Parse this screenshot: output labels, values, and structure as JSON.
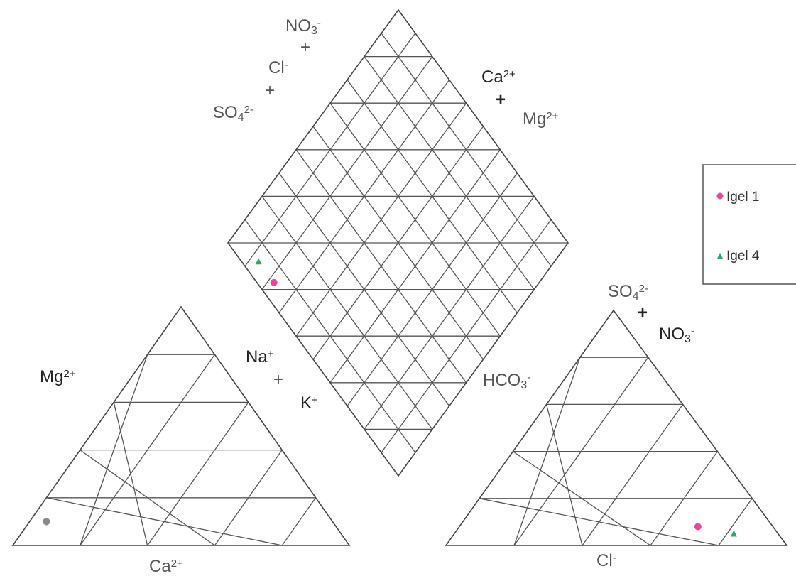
{
  "chart_data": {
    "type": "scatter",
    "subtype": "piper-diagram",
    "colors": {
      "igel1": "#e8479a",
      "igel4": "#2ea86a",
      "overlap": "#8a8a8a",
      "grid": "#555555"
    },
    "labels": {
      "diamond_top": [
        "NO3-",
        "+",
        "Cl-",
        "+",
        "SO42-"
      ],
      "diamond_right_upper": [
        "Ca2+",
        "+",
        "Mg2+"
      ],
      "diamond_left_lower": [
        "Na+",
        "+",
        "K+"
      ],
      "diamond_right_lower": "HCO3-",
      "cation_left": "Mg2+",
      "cation_bottom": "Ca2+",
      "anion_top": [
        "SO42-",
        "+",
        "NO3-"
      ],
      "anion_bottom": "Cl-"
    },
    "legend": {
      "position": "right",
      "entries": [
        {
          "name": "Igel 1",
          "marker": "circle",
          "color": "#e8479a"
        },
        {
          "name": "Igel 4",
          "marker": "triangle",
          "color": "#2ea86a"
        }
      ]
    },
    "series": [
      {
        "name": "Igel 1",
        "cation": {
          "Ca": 85,
          "Mg": 10,
          "NaK": 5
        },
        "anion": {
          "Cl": 70,
          "SO4NO3": 8,
          "HCO3": 22
        },
        "diamond": {
          "NaK": 5,
          "SO4ClNO3": 78
        }
      },
      {
        "name": "Igel 4",
        "cation": {
          "Ca": 85,
          "Mg": 10,
          "NaK": 5
        },
        "anion": {
          "Cl": 82,
          "SO4NO3": 5,
          "HCO3": 13
        },
        "diamond": {
          "NaK": 5,
          "SO4ClNO3": 87
        }
      }
    ],
    "grid_divisions": 5
  }
}
